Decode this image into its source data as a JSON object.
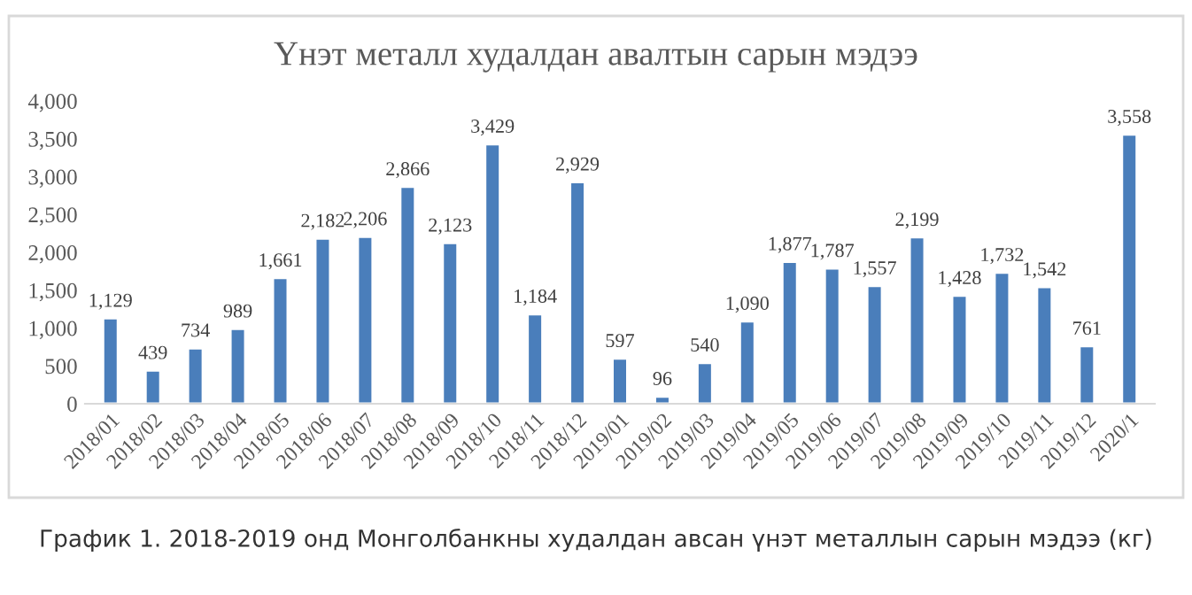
{
  "chart_data": {
    "type": "bar",
    "title": "Үнэт металл худалдан авалтын сарын мэдээ",
    "categories": [
      "2018/01",
      "2018/02",
      "2018/03",
      "2018/04",
      "2018/05",
      "2018/06",
      "2018/07",
      "2018/08",
      "2018/09",
      "2018/10",
      "2018/11",
      "2018/12",
      "2019/01",
      "2019/02",
      "2019/03",
      "2019/04",
      "2019/05",
      "2019/06",
      "2019/07",
      "2019/08",
      "2019/09",
      "2019/10",
      "2019/11",
      "2019/12",
      "2020/1"
    ],
    "values": [
      1129,
      439,
      734,
      989,
      1661,
      2182,
      2206,
      2866,
      2123,
      3429,
      1184,
      2929,
      597,
      96,
      540,
      1090,
      1877,
      1787,
      1557,
      2199,
      1428,
      1732,
      1542,
      761,
      3558
    ],
    "value_labels": [
      "1,129",
      "439",
      "734",
      "989",
      "1,661",
      "2,182",
      "2,206",
      "2,866",
      "2,123",
      "3,429",
      "1,184",
      "2,929",
      "597",
      "96",
      "540",
      "1,090",
      "1,877",
      "1,787",
      "1,557",
      "2,199",
      "1,428",
      "1,732",
      "1,542",
      "761",
      "3,558"
    ],
    "color": "#4a7ebb",
    "ylim": [
      0,
      4000
    ],
    "yticks": [
      {
        "value": 0,
        "label": "0"
      },
      {
        "value": 500,
        "label": "500"
      },
      {
        "value": 1000,
        "label": "1,000"
      },
      {
        "value": 1500,
        "label": "1,500"
      },
      {
        "value": 2000,
        "label": "2,000"
      },
      {
        "value": 2500,
        "label": "2,500"
      },
      {
        "value": 3000,
        "label": "3,000"
      },
      {
        "value": 3500,
        "label": "3,500"
      },
      {
        "value": 4000,
        "label": "4,000"
      }
    ],
    "grid": false,
    "legend": false,
    "annotations": [
      "График 1. 2018-2019 онд Монголбанкны худалдан авсан үнэт металлын сарын мэдээ (кг)"
    ]
  }
}
